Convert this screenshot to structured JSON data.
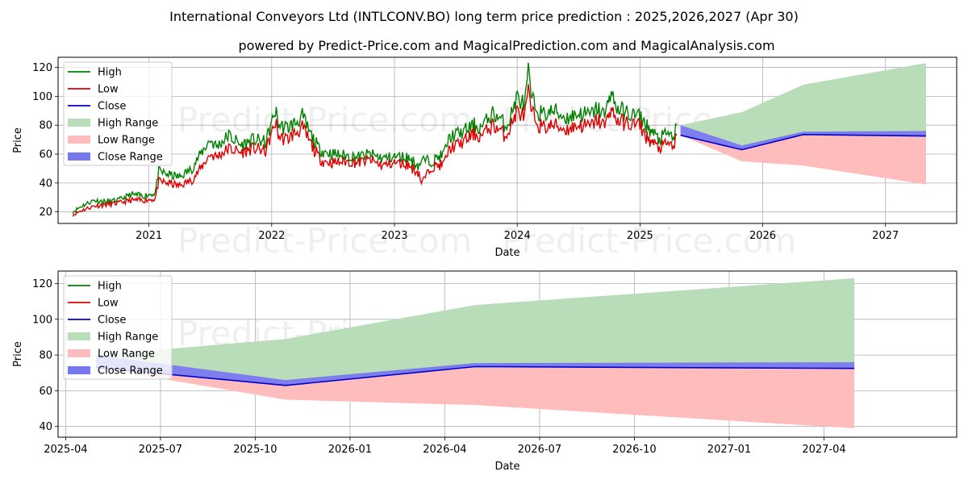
{
  "title": "International Conveyors Ltd (INTLCONV.BO) long term price prediction : 2025,2026,2027 (Apr 30)",
  "subtitle": "powered by Predict-Price.com and MagicalPrediction.com and MagicalAnalysis.com",
  "watermark": "Predict-Price.com",
  "colors": {
    "high": "#008000",
    "low": "#dd0000",
    "close": "#0000cc",
    "high_range": "#b9dcb9",
    "low_range": "#ffbcbc",
    "close_range": "#7777ee",
    "grid": "#b0b0b0"
  },
  "chart_data": [
    {
      "type": "line",
      "name": "long-term",
      "xlabel": "Date",
      "ylabel": "Price",
      "xlim": [
        2020.26,
        2027.58
      ],
      "ylim": [
        12,
        127
      ],
      "xticks": [
        {
          "v": 2021.0,
          "label": "2021"
        },
        {
          "v": 2022.0,
          "label": "2022"
        },
        {
          "v": 2023.0,
          "label": "2023"
        },
        {
          "v": 2024.0,
          "label": "2024"
        },
        {
          "v": 2025.0,
          "label": "2025"
        },
        {
          "v": 2026.0,
          "label": "2026"
        },
        {
          "v": 2027.0,
          "label": "2027"
        }
      ],
      "yticks": [
        20,
        40,
        60,
        80,
        100,
        120
      ],
      "legend_position": "upper-left",
      "history": {
        "x": [
          2020.38,
          2020.45,
          2020.55,
          2020.65,
          2020.75,
          2020.85,
          2020.95,
          2021.05,
          2021.08,
          2021.15,
          2021.25,
          2021.35,
          2021.42,
          2021.5,
          2021.55,
          2021.65,
          2021.75,
          2021.85,
          2021.95,
          2022.03,
          2022.06,
          2022.12,
          2022.2,
          2022.25,
          2022.3,
          2022.38,
          2022.42,
          2022.5,
          2022.6,
          2022.7,
          2022.8,
          2022.9,
          2023.0,
          2023.1,
          2023.2,
          2023.22,
          2023.3,
          2023.4,
          2023.45,
          2023.55,
          2023.65,
          2023.7,
          2023.8,
          2023.85,
          2023.9,
          2023.93,
          2024.0,
          2024.06,
          2024.09,
          2024.12,
          2024.2,
          2024.3,
          2024.4,
          2024.5,
          2024.6,
          2024.65,
          2024.72,
          2024.75,
          2024.82,
          2024.9,
          2025.0,
          2025.05,
          2025.15,
          2025.22,
          2025.28,
          2025.3
        ],
        "high": [
          20,
          24,
          28,
          27,
          28,
          32,
          31,
          33,
          48,
          46,
          44,
          50,
          60,
          70,
          65,
          73,
          66,
          70,
          68,
          90,
          80,
          78,
          82,
          86,
          76,
          64,
          62,
          60,
          59,
          58,
          60,
          57,
          58,
          58,
          52,
          56,
          55,
          60,
          72,
          75,
          80,
          78,
          88,
          85,
          80,
          82,
          100,
          93,
          116,
          97,
          87,
          90,
          85,
          88,
          87,
          92,
          86,
          104,
          91,
          88,
          86,
          80,
          70,
          74,
          72,
          80
        ],
        "low": [
          18,
          21,
          24,
          25,
          26,
          28,
          28,
          29,
          41,
          40,
          38,
          42,
          50,
          60,
          58,
          64,
          61,
          64,
          62,
          82,
          72,
          70,
          75,
          78,
          70,
          58,
          55,
          54,
          55,
          54,
          56,
          52,
          54,
          53,
          47,
          40,
          51,
          53,
          64,
          68,
          74,
          72,
          80,
          77,
          73,
          76,
          90,
          86,
          102,
          88,
          78,
          80,
          77,
          80,
          79,
          84,
          79,
          92,
          83,
          81,
          80,
          72,
          64,
          67,
          66,
          73
        ],
        "close": []
      },
      "forecast": {
        "x": [
          2025.33,
          2025.83,
          2026.33,
          2027.33
        ],
        "close": [
          73,
          63,
          73.5,
          72.5
        ],
        "high_range": [
          [
            80,
            80
          ],
          [
            66,
            89
          ],
          [
            73,
            108
          ],
          [
            76,
            123
          ]
        ],
        "low_range": [
          [
            73,
            73
          ],
          [
            55,
            64
          ],
          [
            52,
            73
          ],
          [
            39,
            72.5
          ]
        ],
        "close_range": [
          [
            73,
            80
          ],
          [
            63,
            66
          ],
          [
            73.5,
            75.5
          ],
          [
            72.5,
            76
          ]
        ]
      },
      "legend": [
        "High",
        "Low",
        "Close",
        "High Range",
        "Low Range",
        "Close Range"
      ]
    },
    {
      "type": "line",
      "name": "zoomed-forecast",
      "xlabel": "Date",
      "ylabel": "Price",
      "xlim": [
        2025.23,
        2027.6
      ],
      "ylim": [
        34,
        127
      ],
      "xticks": [
        {
          "v": 2025.25,
          "label": "2025-04"
        },
        {
          "v": 2025.5,
          "label": "2025-07"
        },
        {
          "v": 2025.75,
          "label": "2025-10"
        },
        {
          "v": 2026.0,
          "label": "2026-01"
        },
        {
          "v": 2026.25,
          "label": "2026-04"
        },
        {
          "v": 2026.5,
          "label": "2026-07"
        },
        {
          "v": 2026.75,
          "label": "2026-10"
        },
        {
          "v": 2027.0,
          "label": "2027-01"
        },
        {
          "v": 2027.25,
          "label": "2027-04"
        }
      ],
      "yticks": [
        40,
        60,
        80,
        100,
        120
      ],
      "legend_position": "upper-left",
      "forecast": {
        "x": [
          2025.33,
          2025.83,
          2026.33,
          2027.33
        ],
        "close": [
          73,
          63,
          73.5,
          72.5
        ],
        "high_range": [
          [
            80,
            80
          ],
          [
            66,
            89
          ],
          [
            73,
            108
          ],
          [
            76,
            123
          ]
        ],
        "low_range": [
          [
            73,
            73
          ],
          [
            55,
            64
          ],
          [
            52,
            73
          ],
          [
            39,
            72.5
          ]
        ],
        "close_range": [
          [
            73,
            80
          ],
          [
            63,
            66
          ],
          [
            73.5,
            75.5
          ],
          [
            72.5,
            76
          ]
        ]
      },
      "legend": [
        "High",
        "Low",
        "Close",
        "High Range",
        "Low Range",
        "Close Range"
      ]
    }
  ]
}
